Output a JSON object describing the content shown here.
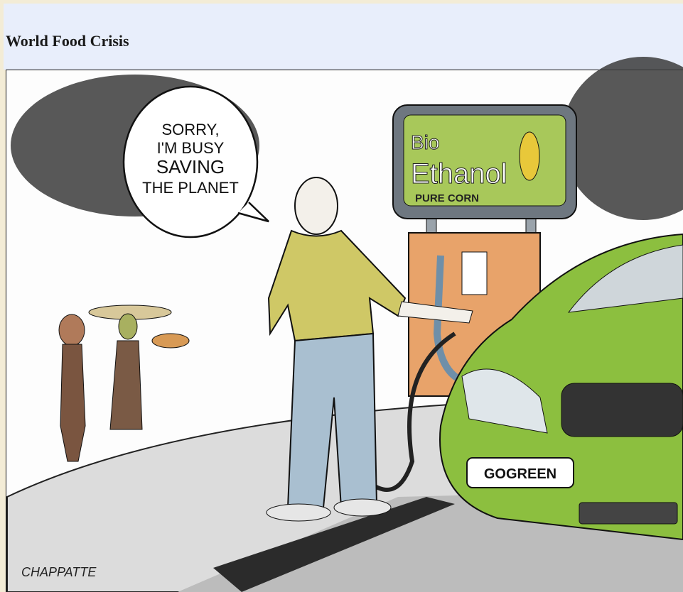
{
  "page": {
    "title": "World Food Crisis"
  },
  "cartoon": {
    "speech_bubble": [
      "SORRY,",
      "I'M BUSY",
      "SAVING",
      "THE PLANET"
    ],
    "sign": [
      "Bio",
      "Ethanol",
      "PURE CORN"
    ],
    "license_plate": "GOGREEN",
    "signature": "CHAPPATTE"
  }
}
